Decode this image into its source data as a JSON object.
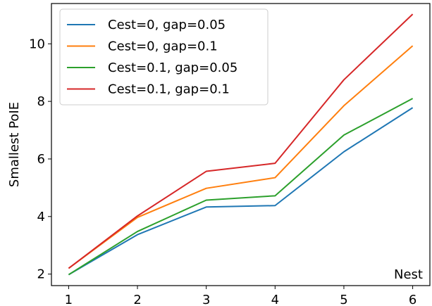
{
  "chart_data": {
    "type": "line",
    "xlabel": "Nest",
    "ylabel": "Smallest PoIE",
    "xlim": [
      0.75,
      6.25
    ],
    "ylim": [
      1.6,
      11.4
    ],
    "x": [
      1,
      2,
      3,
      4,
      5,
      6
    ],
    "xticks": [
      "1",
      "2",
      "3",
      "4",
      "5",
      "6"
    ],
    "yticks": [
      "2",
      "4",
      "6",
      "8",
      "10"
    ],
    "ytick_values": [
      2,
      4,
      6,
      8,
      10
    ],
    "grid": false,
    "legend_position": "top-left",
    "series": [
      {
        "name": "Cest=0, gap=0.05",
        "color": "#1f77b4",
        "values": [
          1.98,
          3.37,
          4.33,
          4.38,
          6.25,
          7.78
        ]
      },
      {
        "name": "Cest=0, gap=0.1",
        "color": "#ff7f0e",
        "values": [
          2.2,
          3.97,
          4.98,
          5.35,
          7.85,
          9.93
        ]
      },
      {
        "name": "Cest=0.1, gap=0.05",
        "color": "#2ca02c",
        "values": [
          1.98,
          3.48,
          4.57,
          4.72,
          6.83,
          8.1
        ]
      },
      {
        "name": "Cest=0.1, gap=0.1",
        "color": "#d62728",
        "values": [
          2.2,
          4.02,
          5.57,
          5.85,
          8.75,
          11.03
        ]
      }
    ]
  }
}
